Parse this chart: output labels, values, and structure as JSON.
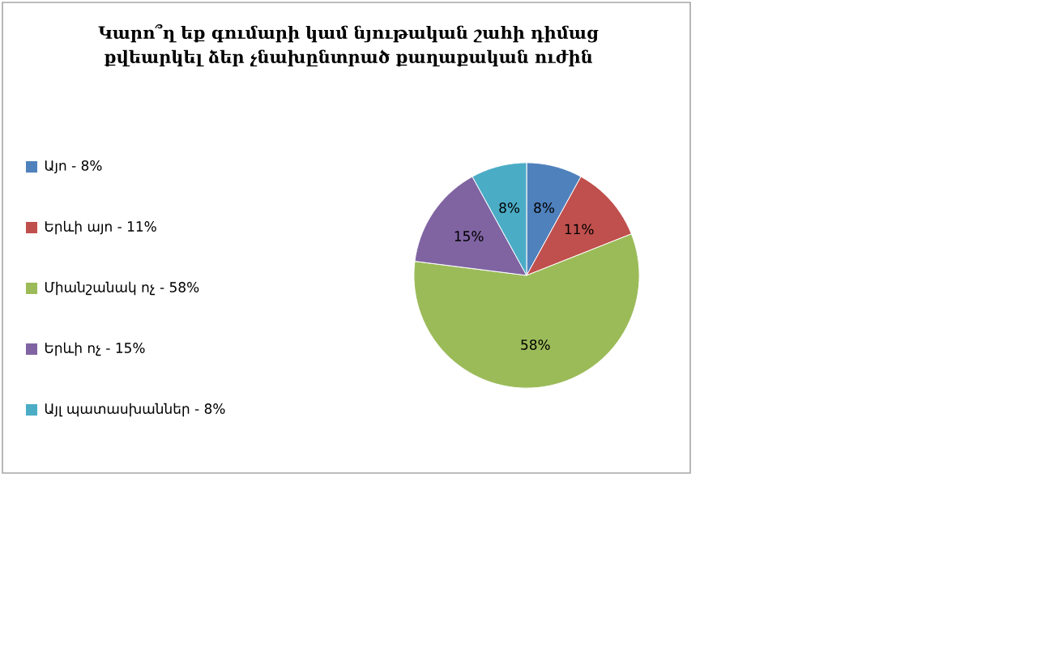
{
  "chart_data": {
    "type": "pie",
    "title": "Կարո՞ղ եք գումարի կամ նյութական շահի դիմաց քվեարկել ձեր չնախընտրած քաղաքական ուժին",
    "categories": [
      "Այո - 8%",
      "Երևի այո - 11%",
      "Միանշանակ ոչ - 58%",
      "Երևի ոչ - 15%",
      "Այլ պատասխաններ - 8%"
    ],
    "values": [
      8,
      11,
      58,
      15,
      8
    ],
    "colors": [
      "#4f81bd",
      "#c0504d",
      "#9bbb59",
      "#8064a2",
      "#4bacc6"
    ],
    "value_labels": [
      "8%",
      "11%",
      "58%",
      "15%",
      "8%"
    ],
    "legend": "left"
  }
}
